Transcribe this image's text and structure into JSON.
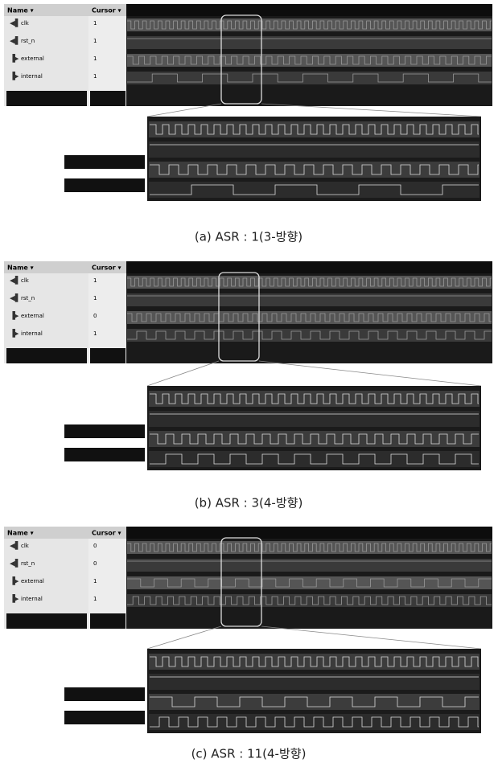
{
  "panels": [
    {
      "name_header": "Name ▾",
      "cursor_header": "Cursor ▾",
      "signals": [
        {
          "name": "clk",
          "value": "1"
        },
        {
          "name": "rst_n",
          "value": "1"
        },
        {
          "name": "external",
          "value": "1"
        },
        {
          "name": "internal",
          "value": "1"
        }
      ],
      "caption": "(a) ASR : 1(3-방향)"
    },
    {
      "name_header": "Name ▾",
      "cursor_header": "Cursor ▾",
      "signals": [
        {
          "name": "clk",
          "value": "1"
        },
        {
          "name": "rst_n",
          "value": "1"
        },
        {
          "name": "external",
          "value": "0"
        },
        {
          "name": "internal",
          "value": "1"
        }
      ],
      "caption": "(b) ASR : 3(4-방향)"
    },
    {
      "name_header": "Name ▾",
      "cursor_header": "Cursor ▾",
      "signals": [
        {
          "name": "clk",
          "value": "0"
        },
        {
          "name": "rst_n",
          "value": "0"
        },
        {
          "name": "external",
          "value": "1"
        },
        {
          "name": "internal",
          "value": "1"
        }
      ],
      "caption": "(c) ASR : 11(4-방향)"
    }
  ]
}
